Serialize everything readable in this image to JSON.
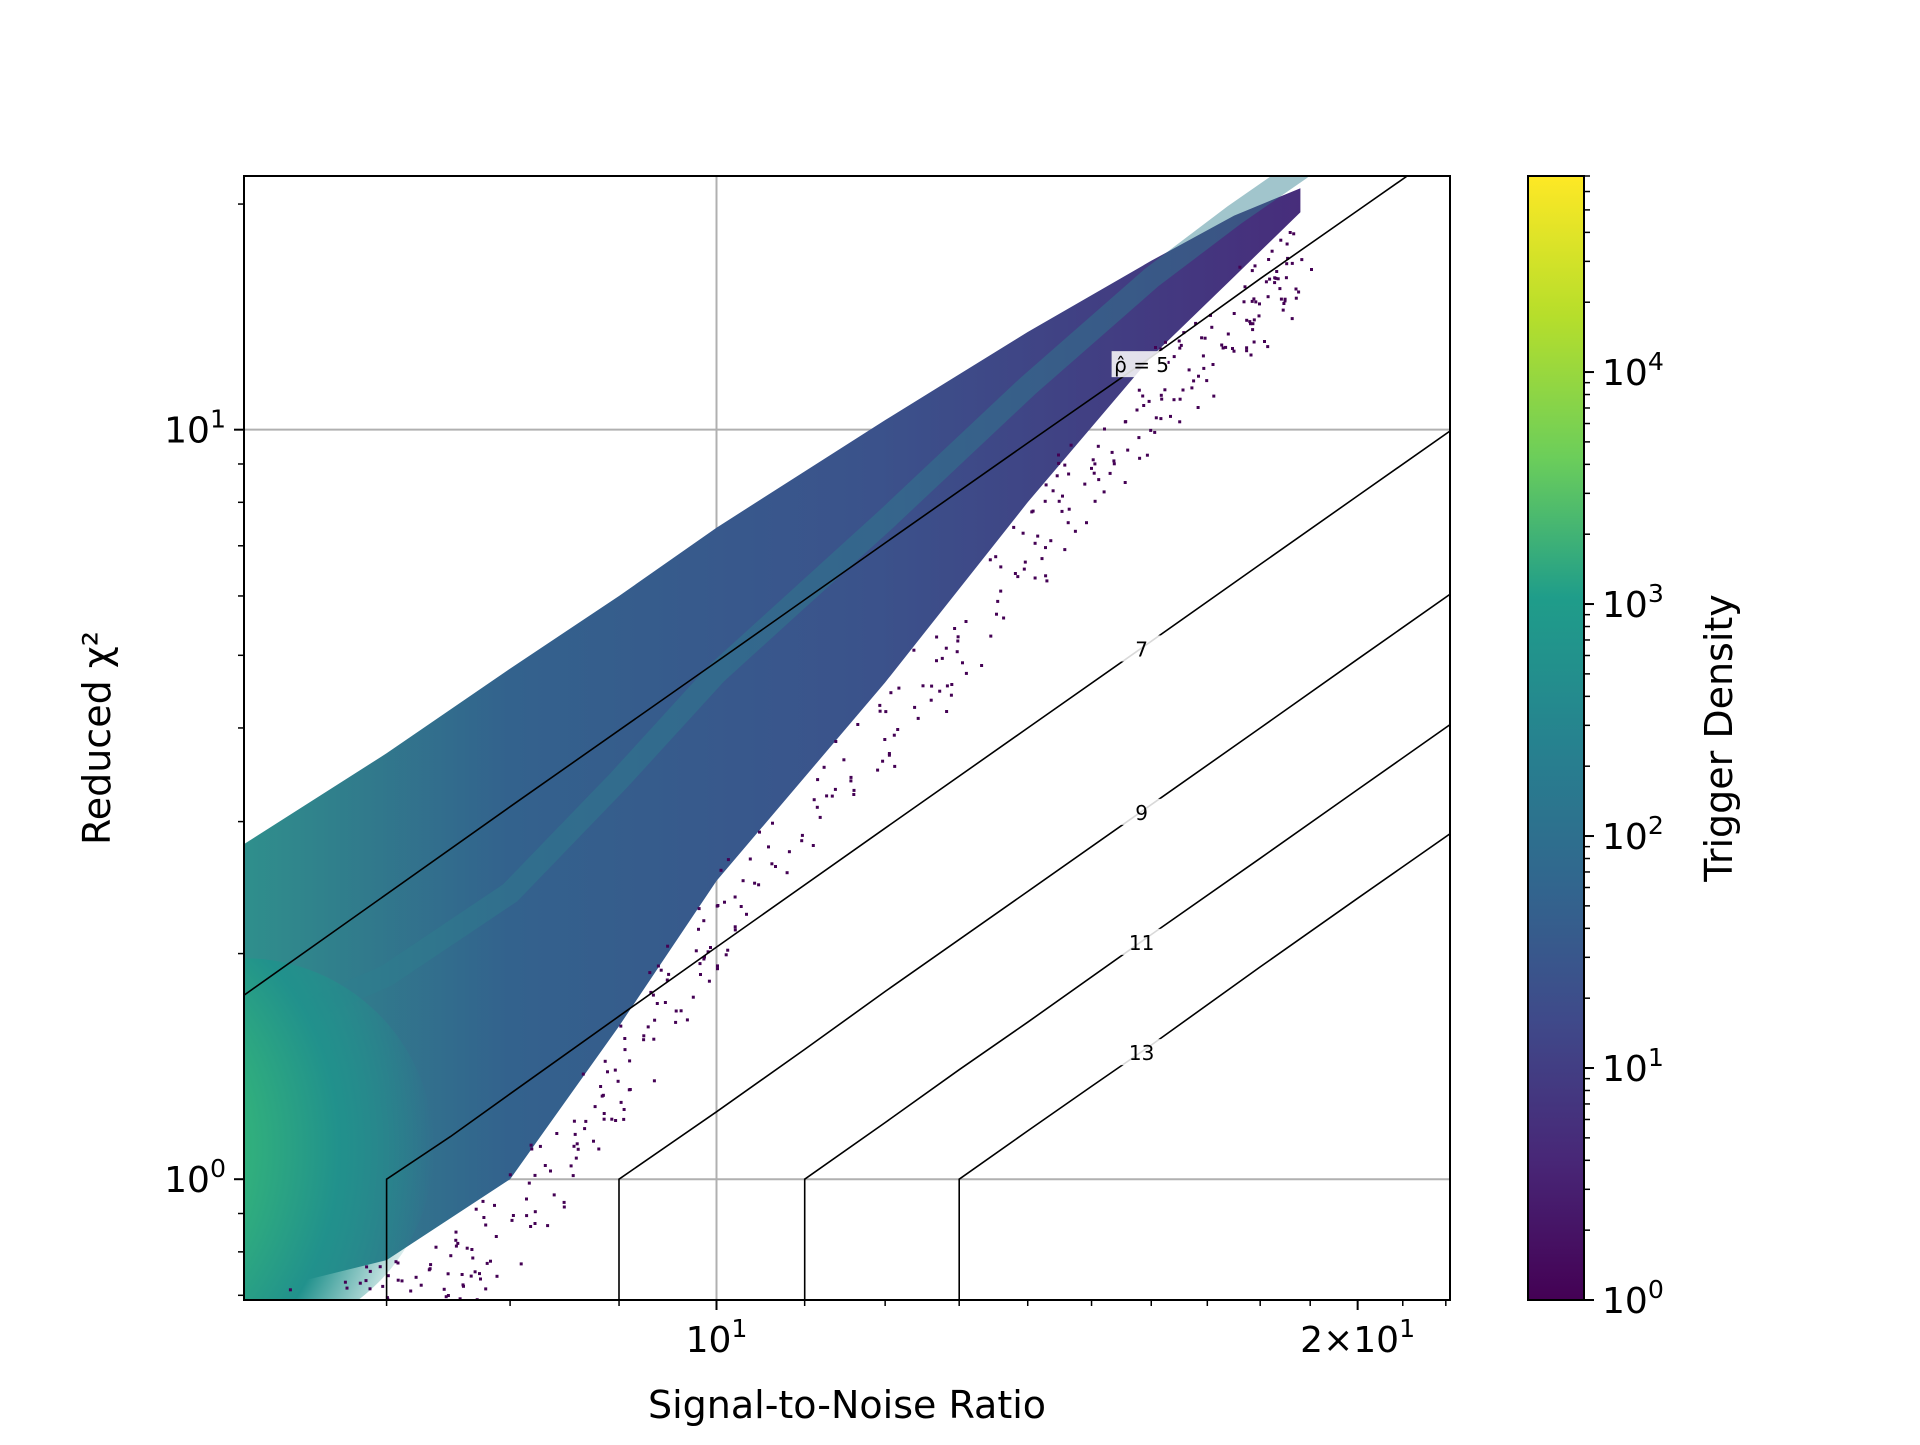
{
  "chart_data": {
    "type": "heatmap",
    "title": "",
    "xlabel": "Signal-to-Noise Ratio",
    "ylabel": "Reduced χ²",
    "xscale": "log",
    "yscale": "log",
    "xlim": [
      6.0,
      22.1
    ],
    "ylim": [
      0.69,
      21.8
    ],
    "grid": true,
    "x_ticks": [
      {
        "value": 10,
        "base": "10",
        "exp": "1",
        "mult": ""
      },
      {
        "value": 20,
        "base": "10",
        "exp": "1",
        "mult": "2×"
      }
    ],
    "y_ticks": [
      {
        "value": 1,
        "base": "10",
        "exp": "0"
      },
      {
        "value": 10,
        "base": "10",
        "exp": "1"
      }
    ],
    "density_ridges": [
      {
        "snr": [
          6.0,
          7.0,
          8.0,
          9.0,
          10.0,
          12.0,
          14.0,
          16.0,
          17.5,
          18.8
        ],
        "chisq_top": [
          2.8,
          3.7,
          4.8,
          6.0,
          7.4,
          10.3,
          13.5,
          16.8,
          19.3,
          21.0
        ],
        "chisq_bottom": [
          0.7,
          0.78,
          1.0,
          1.6,
          2.5,
          4.6,
          8.0,
          12.5,
          16.0,
          19.5
        ]
      }
    ],
    "contours": [
      {
        "label": "ρ̂ = 5",
        "label_snr": 15.8,
        "rho": 5,
        "snr": [
          6.0,
          8,
          10,
          12,
          14,
          16,
          18,
          20,
          22.1
        ],
        "chisq": [
          1.76,
          3.14,
          4.9,
          7.06,
          9.6,
          12.5,
          15.9,
          19.6,
          23.9
        ]
      },
      {
        "label": "7",
        "label_snr": 15.8,
        "rho": 7,
        "snr": [
          7.0,
          7.5,
          8,
          9,
          10,
          12,
          14,
          16,
          18,
          20,
          22.1
        ],
        "chisq": [
          1.0,
          1.14,
          1.3,
          1.65,
          2.04,
          2.94,
          4.0,
          5.22,
          6.61,
          8.16,
          9.96
        ]
      },
      {
        "label": "9",
        "label_snr": 15.8,
        "rho": 9,
        "snr": [
          9.0,
          10,
          11,
          12,
          14,
          16,
          18,
          20,
          22.1
        ],
        "chisq": [
          1.0,
          1.23,
          1.49,
          1.78,
          2.42,
          3.16,
          4.0,
          4.94,
          6.03
        ]
      },
      {
        "label": "11",
        "label_snr": 15.8,
        "rho": 11,
        "snr": [
          11.0,
          12,
          13,
          14,
          16,
          18,
          20,
          22.1
        ],
        "chisq": [
          1.0,
          1.19,
          1.4,
          1.62,
          2.12,
          2.68,
          3.31,
          4.04
        ]
      },
      {
        "label": "13",
        "label_snr": 15.8,
        "rho": 13,
        "snr": [
          13.0,
          14,
          15,
          16,
          18,
          20,
          22.1
        ],
        "chisq": [
          1.0,
          1.16,
          1.33,
          1.51,
          1.92,
          2.37,
          2.89
        ]
      }
    ],
    "colorbar": {
      "label": "Trigger Density",
      "scale": "log",
      "min": 1,
      "max": 70000,
      "cmap": "viridis",
      "ticks": [
        {
          "value": 1,
          "base": "10",
          "exp": "0"
        },
        {
          "value": 10,
          "base": "10",
          "exp": "1"
        },
        {
          "value": 100,
          "base": "10",
          "exp": "2"
        },
        {
          "value": 1000,
          "base": "10",
          "exp": "3"
        },
        {
          "value": 10000,
          "base": "10",
          "exp": "4"
        }
      ],
      "colors": [
        "#440154",
        "#482777",
        "#3f4a8a",
        "#31678e",
        "#26838f",
        "#1f9d8a",
        "#6cce5a",
        "#b6de2b",
        "#fee825"
      ]
    }
  }
}
